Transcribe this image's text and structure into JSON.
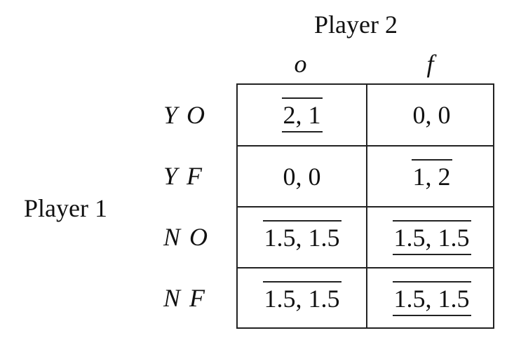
{
  "players": {
    "column_player": "Player 2",
    "row_player": "Player 1"
  },
  "columns": [
    "o",
    "f"
  ],
  "rows": [
    "Y O",
    "Y F",
    "N O",
    "N F"
  ],
  "payoffs": [
    [
      {
        "text": "2, 1",
        "overline": true,
        "underline": true
      },
      {
        "text": "0, 0",
        "overline": false,
        "underline": false
      }
    ],
    [
      {
        "text": "0, 0",
        "overline": false,
        "underline": false
      },
      {
        "text": "1, 2",
        "overline": true,
        "underline": false
      }
    ],
    [
      {
        "text": "1.5, 1.5",
        "overline": true,
        "underline": false
      },
      {
        "text": "1.5, 1.5",
        "overline": true,
        "underline": true
      }
    ],
    [
      {
        "text": "1.5, 1.5",
        "overline": true,
        "underline": false
      },
      {
        "text": "1.5, 1.5",
        "overline": true,
        "underline": true
      }
    ]
  ]
}
